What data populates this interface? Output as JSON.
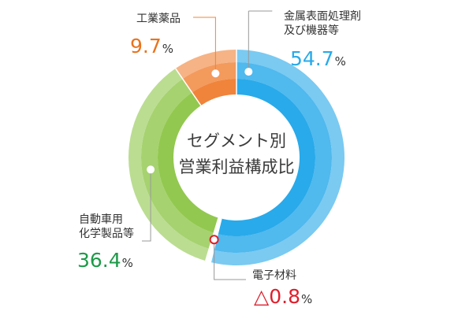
{
  "chart_data": {
    "type": "pie",
    "title": "セグメント別\n営業利益構成比",
    "title_lines": [
      "セグメント別",
      "営業利益構成比"
    ],
    "unit": "%",
    "segments": [
      {
        "name": "金属表面処理剤及び機器等",
        "label_lines": [
          "金属表面処理剤",
          "及び機器等"
        ],
        "value": 54.7,
        "value_text": "54.7",
        "color": "#29aaea",
        "value_color": "#29aaea"
      },
      {
        "name": "電子材料",
        "label_lines": [
          "電子材料"
        ],
        "value": -0.8,
        "value_text": "△0.8",
        "color": "#ffffff",
        "value_color": "#e01e2b"
      },
      {
        "name": "自動車用化学製品等",
        "label_lines": [
          "自動車用",
          "化学製品等"
        ],
        "value": 36.4,
        "value_text": "36.4",
        "color": "#92c84f",
        "value_color": "#1e9a49"
      },
      {
        "name": "工業薬品",
        "label_lines": [
          "工業薬品"
        ],
        "value": 9.7,
        "value_text": "9.7",
        "color": "#f0843a",
        "value_color": "#e9731d"
      }
    ]
  }
}
